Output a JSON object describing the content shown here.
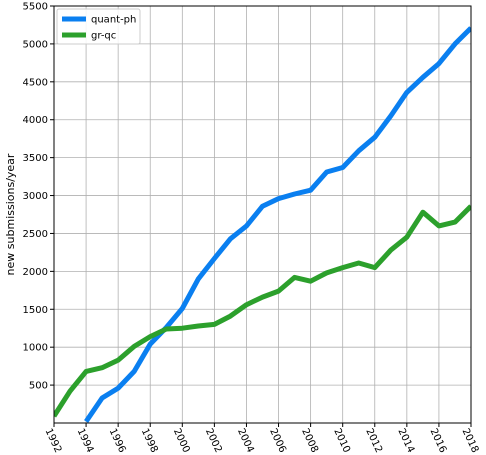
{
  "chart_data": {
    "type": "line",
    "title": "",
    "xlabel": "",
    "ylabel": "new submissions/year",
    "xlim": [
      1992,
      2018
    ],
    "ylim": [
      0,
      5500
    ],
    "xticks": [
      1992,
      1994,
      1996,
      1998,
      2000,
      2002,
      2004,
      2006,
      2008,
      2010,
      2012,
      2014,
      2016,
      2018
    ],
    "xtick_labels": [
      "1992",
      "1994",
      "1996",
      "1998",
      "2000",
      "2002",
      "2004",
      "2006",
      "2008",
      "2010",
      "2012",
      "2014",
      "2016",
      "2018"
    ],
    "yticks": [
      500,
      1000,
      1500,
      2000,
      2500,
      3000,
      3500,
      4000,
      4500,
      5000,
      5500
    ],
    "ytick_labels": [
      "500",
      "1000",
      "1500",
      "2000",
      "2500",
      "3000",
      "3500",
      "4000",
      "4500",
      "5000",
      "5500"
    ],
    "grid": true,
    "legend_position": "top-left",
    "x": [
      1992,
      1993,
      1994,
      1995,
      1996,
      1997,
      1998,
      1999,
      2000,
      2001,
      2002,
      2003,
      2004,
      2005,
      2006,
      2007,
      2008,
      2009,
      2010,
      2011,
      2012,
      2013,
      2014,
      2015,
      2016,
      2017,
      2018
    ],
    "series": [
      {
        "name": "quant-ph",
        "color": "#0a7ff0",
        "values": [
          null,
          null,
          20,
          330,
          460,
          680,
          1040,
          1260,
          1510,
          1900,
          2170,
          2430,
          2600,
          2860,
          2960,
          3020,
          3070,
          3310,
          3370,
          3590,
          3770,
          4050,
          4360,
          4560,
          4740,
          5000,
          5210
        ]
      },
      {
        "name": "gr-qc",
        "color": "#2ca02c",
        "values": [
          90,
          420,
          680,
          730,
          830,
          1010,
          1140,
          1240,
          1250,
          1280,
          1300,
          1410,
          1560,
          1660,
          1740,
          1920,
          1870,
          1980,
          2050,
          2110,
          2050,
          2280,
          2450,
          2780,
          2600,
          2650,
          2860
        ]
      }
    ]
  }
}
